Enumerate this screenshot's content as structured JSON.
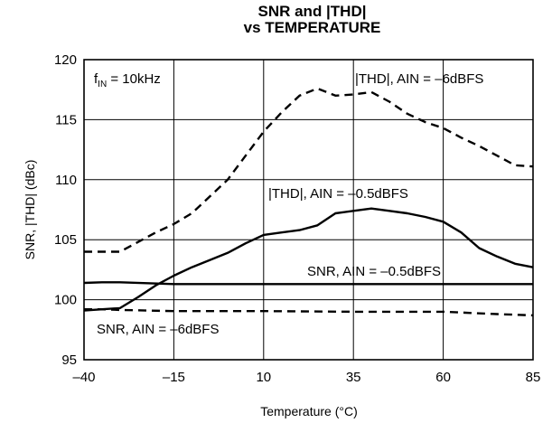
{
  "chart_data": {
    "type": "line",
    "title_line1": "SNR and |THD|",
    "title_line2": "vs TEMPERATURE",
    "xlabel": "Temperature (°C)",
    "ylabel": "SNR, |THD| (dBc)",
    "xlim": [
      -40,
      85
    ],
    "ylim": [
      95,
      120
    ],
    "xticks": [
      -40,
      -15,
      10,
      35,
      60,
      85
    ],
    "xtick_labels": [
      "–40",
      "–15",
      "10",
      "35",
      "60",
      "85"
    ],
    "yticks": [
      95,
      100,
      105,
      110,
      115,
      120
    ],
    "ytick_labels": [
      "95",
      "100",
      "105",
      "110",
      "115",
      "120"
    ],
    "grid": true,
    "condition_note": {
      "prefix": "f",
      "subscript": "IN",
      "suffix": " = 10kHz"
    },
    "series": [
      {
        "name": "|THD|, AIN = –6dBFS",
        "style": "dashed",
        "x": [
          -40,
          -35,
          -30,
          -20,
          -15,
          -10,
          -5,
          0,
          5,
          10,
          15,
          20,
          25,
          30,
          35,
          40,
          45,
          50,
          55,
          60,
          65,
          70,
          75,
          80,
          85
        ],
        "y": [
          104.0,
          104.0,
          104.0,
          105.6,
          106.3,
          107.2,
          108.6,
          110.0,
          112.0,
          114.0,
          115.6,
          117.0,
          117.6,
          117.0,
          117.1,
          117.3,
          116.5,
          115.5,
          114.8,
          114.3,
          113.5,
          112.8,
          112.0,
          111.2,
          111.1
        ]
      },
      {
        "name": "|THD|, AIN = –0.5dBFS",
        "style": "solid",
        "x": [
          -40,
          -35,
          -30,
          -25,
          -20,
          -15,
          -10,
          -5,
          0,
          5,
          10,
          15,
          20,
          25,
          30,
          35,
          40,
          45,
          50,
          55,
          60,
          65,
          70,
          75,
          80,
          85
        ],
        "y": [
          99.1,
          99.2,
          99.3,
          100.2,
          101.2,
          102.0,
          102.7,
          103.3,
          103.9,
          104.7,
          105.4,
          105.6,
          105.8,
          106.2,
          107.2,
          107.4,
          107.6,
          107.4,
          107.2,
          106.9,
          106.5,
          105.6,
          104.3,
          103.6,
          103.0,
          102.7
        ]
      },
      {
        "name": "SNR, AIN = –0.5dBFS",
        "style": "solid",
        "x": [
          -40,
          -35,
          -30,
          -15,
          10,
          35,
          60,
          85
        ],
        "y": [
          101.4,
          101.45,
          101.45,
          101.3,
          101.3,
          101.3,
          101.3,
          101.3
        ]
      },
      {
        "name": "SNR, AIN = –6dBFS",
        "style": "dashed",
        "x": [
          -40,
          -35,
          -30,
          -15,
          10,
          35,
          60,
          75,
          85
        ],
        "y": [
          99.2,
          99.2,
          99.15,
          99.05,
          99.05,
          99.0,
          99.0,
          98.8,
          98.7
        ]
      }
    ]
  }
}
